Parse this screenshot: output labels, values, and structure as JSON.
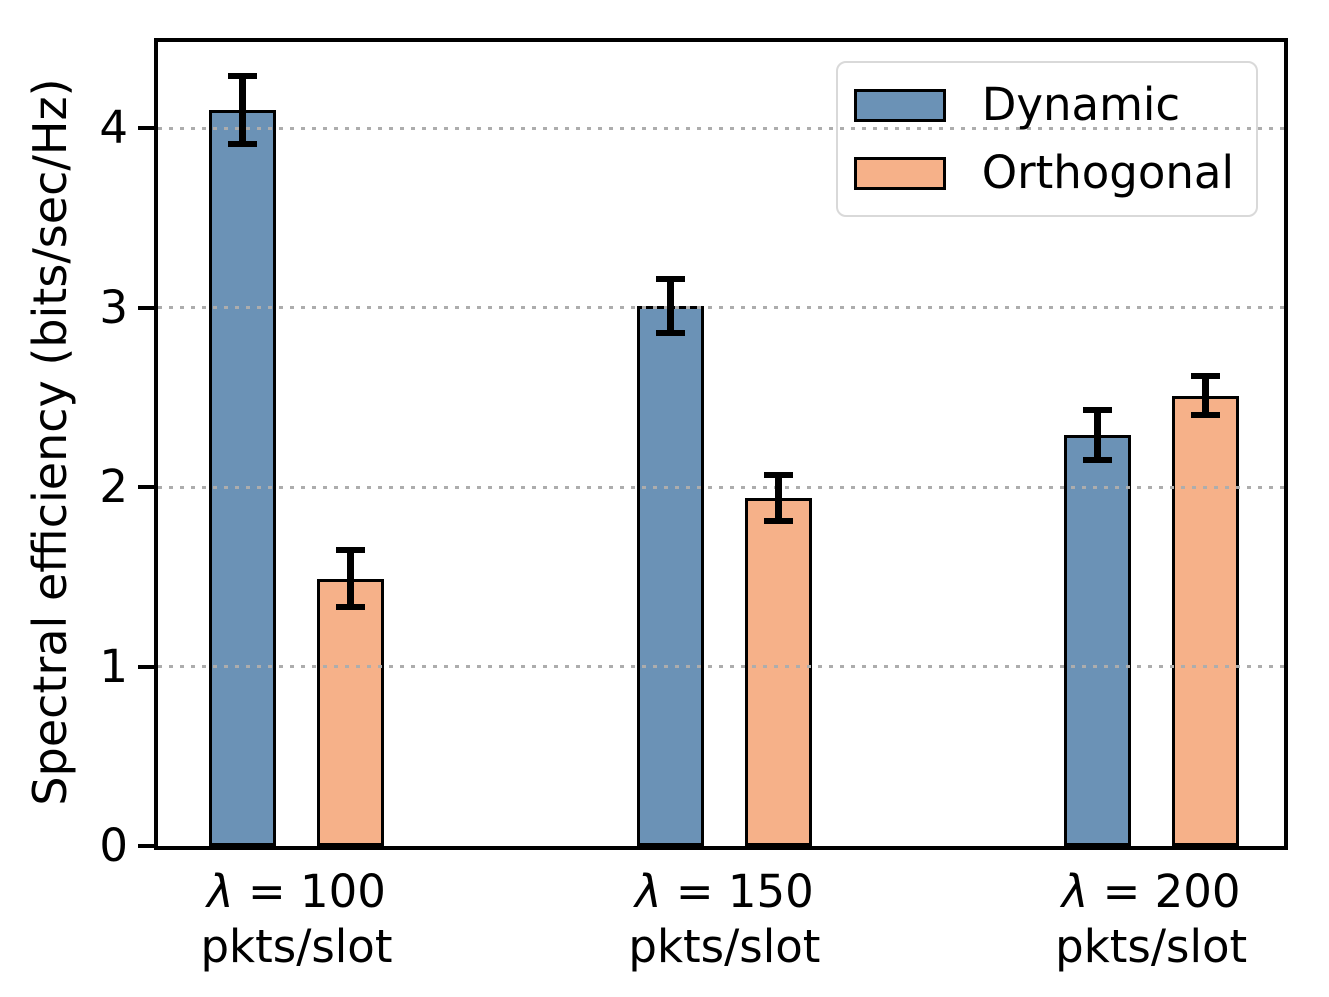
{
  "figure": {
    "background": "#ffffff"
  },
  "chart_data": {
    "type": "bar",
    "title": "",
    "xlabel": "",
    "ylabel": "Spectral efficiency (bits/sec/Hz)",
    "categories": [
      {
        "line1": "λ = 100",
        "line2": "pkts/slot"
      },
      {
        "line1": "λ = 150",
        "line2": "pkts/slot"
      },
      {
        "line1": "λ = 200",
        "line2": "pkts/slot"
      }
    ],
    "series": [
      {
        "name": "Dynamic",
        "color": "#6B92B6",
        "values": [
          4.1,
          3.01,
          2.29
        ],
        "errors": [
          0.19,
          0.15,
          0.14
        ]
      },
      {
        "name": "Orthogonal",
        "color": "#F6B189",
        "values": [
          1.49,
          1.94,
          2.51
        ],
        "errors": [
          0.16,
          0.13,
          0.11
        ]
      }
    ],
    "ylim": [
      0,
      4.48
    ],
    "yticks": [
      0,
      1,
      2,
      3,
      4
    ],
    "grid": {
      "axis": "y",
      "style": "dotted",
      "color": "#adadad",
      "drawn_above_bars": true
    },
    "legend": {
      "position": "upper-right",
      "frame": true
    },
    "error_bars": {
      "color": "#000000",
      "caps": true
    },
    "bar_edge_color": "#000000"
  }
}
